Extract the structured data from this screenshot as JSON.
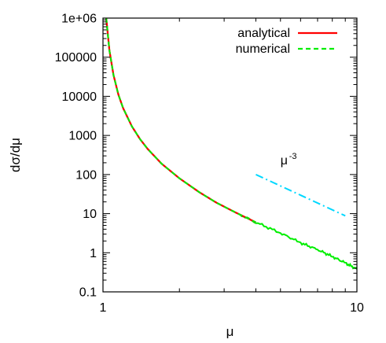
{
  "chart_data": {
    "type": "line",
    "title": "",
    "xlabel": "μ",
    "ylabel": "dσ/dμ",
    "xscale": "log",
    "yscale": "log",
    "xlim": [
      1,
      10
    ],
    "ylim": [
      0.1,
      1000000
    ],
    "x_ticks": [
      {
        "value": 1,
        "label": "1"
      },
      {
        "value": 10,
        "label": "10"
      }
    ],
    "y_ticks": [
      {
        "value": 1000000,
        "label": "1e+06"
      },
      {
        "value": 100000,
        "label": "100000"
      },
      {
        "value": 10000,
        "label": "10000"
      },
      {
        "value": 1000,
        "label": "1000"
      },
      {
        "value": 100,
        "label": "100"
      },
      {
        "value": 10,
        "label": "10"
      },
      {
        "value": 1,
        "label": "1"
      },
      {
        "value": 0.1,
        "label": "0.1"
      }
    ],
    "legend_position": "top-right",
    "grid": false,
    "series": [
      {
        "name": "analytical",
        "color": "#ff0000",
        "style": "solid",
        "x": [
          1.03,
          1.06,
          1.1,
          1.15,
          1.2,
          1.3,
          1.4,
          1.5,
          1.7,
          2.0,
          2.4,
          2.8,
          3.3,
          4.0
        ],
        "y": [
          1000000,
          150000,
          35000,
          11000,
          5000,
          1700,
          800,
          450,
          190,
          80,
          35,
          19,
          11,
          6
        ]
      },
      {
        "name": "numerical",
        "color": "#00ee00",
        "style": "dashed",
        "x": [
          1.03,
          1.06,
          1.1,
          1.15,
          1.2,
          1.3,
          1.4,
          1.5,
          1.7,
          2.0,
          2.4,
          2.8,
          3.3,
          4.0,
          5.0,
          6.0,
          7.0,
          8.0,
          9.0,
          10.0
        ],
        "y": [
          1000000,
          150000,
          35000,
          11000,
          5000,
          1700,
          800,
          450,
          190,
          80,
          35,
          19,
          11,
          6,
          3.2,
          1.8,
          1.2,
          0.8,
          0.55,
          0.38
        ]
      },
      {
        "color": "#00d8ff",
        "style": "dash-dot",
        "x": [
          4.0,
          9.0
        ],
        "y": [
          100,
          8.8
        ]
      }
    ],
    "annotations": [
      {
        "text": "μ",
        "superscript": "-3",
        "x": 5.0,
        "y": 180
      }
    ]
  }
}
